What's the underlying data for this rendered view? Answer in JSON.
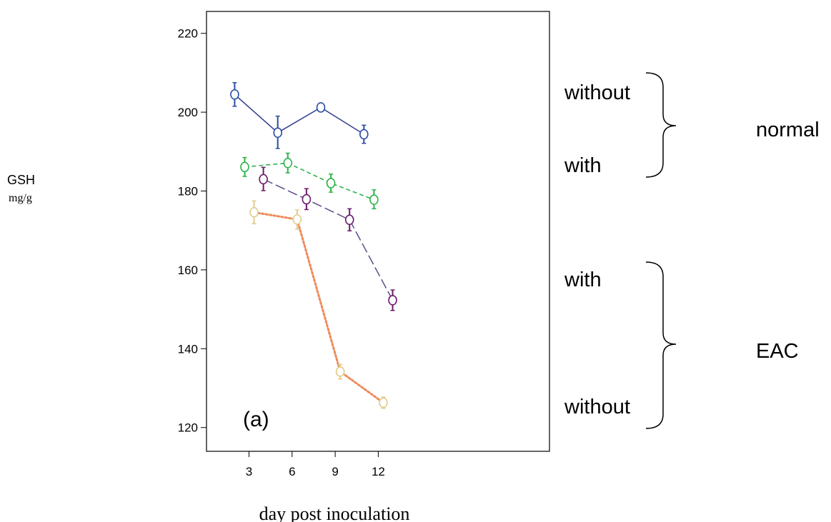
{
  "chart_data": {
    "type": "line",
    "panel_label": "(a)",
    "ylabel": "GSH",
    "ylabel_unit": "mg/g",
    "xlabel": "day post inoculation",
    "xlim": [
      1.5,
      13.5
    ],
    "ylim": [
      115,
      222
    ],
    "xticks": [
      3,
      6,
      9,
      12
    ],
    "yticks": [
      120,
      140,
      160,
      180,
      200,
      220
    ],
    "grid": false,
    "series": [
      {
        "color": "#2e3b8f",
        "dash": "solid",
        "points": [
          {
            "x": 2,
            "y": 204.5,
            "lo": 201.5,
            "hi": 207.5
          },
          {
            "x": 5,
            "y": 194.8,
            "lo": 190.8,
            "hi": 199.0
          },
          {
            "x": 8,
            "y": 201.2,
            "lo": 200.2,
            "hi": 202.2
          },
          {
            "x": 11,
            "y": 194.4,
            "lo": 192.1,
            "hi": 196.7
          }
        ]
      },
      {
        "color": "#2db34a",
        "dash": "short",
        "points": [
          {
            "x": 2.7,
            "y": 186.1,
            "lo": 183.7,
            "hi": 188.5
          },
          {
            "x": 5.7,
            "y": 187.1,
            "lo": 184.6,
            "hi": 189.6
          },
          {
            "x": 8.7,
            "y": 182.0,
            "lo": 179.7,
            "hi": 184.3
          },
          {
            "x": 11.7,
            "y": 177.8,
            "lo": 175.5,
            "hi": 180.3
          }
        ]
      },
      {
        "color": "#5c4d8a",
        "dash": "long",
        "points": [
          {
            "x": 4,
            "y": 183.0,
            "lo": 180.1,
            "hi": 186.0
          },
          {
            "x": 7,
            "y": 177.9,
            "lo": 175.3,
            "hi": 180.6
          },
          {
            "x": 10,
            "y": 172.7,
            "lo": 169.9,
            "hi": 175.5
          },
          {
            "x": 13,
            "y": 152.3,
            "lo": 149.7,
            "hi": 154.9
          }
        ]
      },
      {
        "color": "#f0895a",
        "dash": "dotted",
        "points": [
          {
            "x": 3.35,
            "y": 174.6,
            "lo": 171.7,
            "hi": 177.5
          },
          {
            "x": 6.35,
            "y": 172.8,
            "lo": 170.3,
            "hi": 175.2
          },
          {
            "x": 9.35,
            "y": 134.2,
            "lo": 132.3,
            "hi": 136.0
          },
          {
            "x": 12.35,
            "y": 126.3,
            "lo": 124.9,
            "hi": 127.7
          }
        ]
      }
    ],
    "annotations": {
      "normal_group": {
        "label": "normal",
        "upper": "without",
        "lower": "with"
      },
      "eac_group": {
        "label": "EAC",
        "upper": "with",
        "lower": "without"
      }
    }
  },
  "colors": {
    "marker_normal_without": "#2b4ea3",
    "marker_normal_with": "#2db34a",
    "marker_eac_with": "#6b1a6b",
    "marker_eac_without": "#e0cc8a"
  }
}
